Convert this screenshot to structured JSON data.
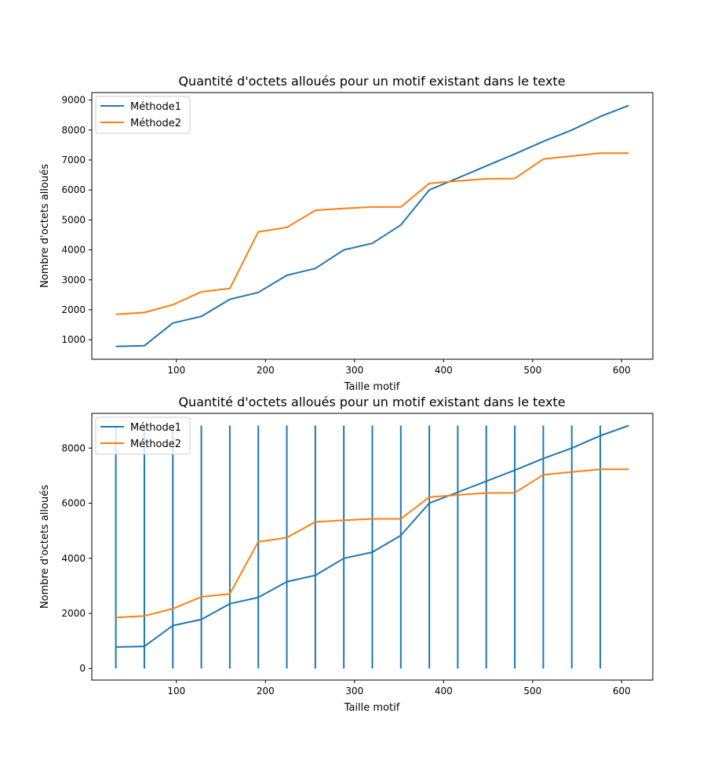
{
  "colors": {
    "methode1": "#1f77b4",
    "methode2": "#ff7f0e"
  },
  "chart_data": [
    {
      "type": "line",
      "title": "Quantité d'octets alloués pour un motif existant dans le texte",
      "xlabel": "Taille motif",
      "ylabel": "Nombre d'octets alloués",
      "xlim": [
        5,
        635
      ],
      "ylim": [
        350,
        9250
      ],
      "xticks": [
        100,
        200,
        300,
        400,
        500,
        600
      ],
      "yticks": [
        1000,
        2000,
        3000,
        4000,
        5000,
        6000,
        7000,
        8000,
        9000
      ],
      "x": [
        32,
        64,
        96,
        128,
        160,
        192,
        224,
        256,
        288,
        320,
        352,
        384,
        416,
        448,
        480,
        512,
        544,
        576,
        608
      ],
      "series": [
        {
          "name": "Méthode1",
          "color": "#1f77b4",
          "values": [
            780,
            800,
            1560,
            1780,
            2350,
            2580,
            3150,
            3380,
            4000,
            4220,
            4830,
            6000,
            6400,
            6800,
            7200,
            7620,
            8000,
            8450,
            8820
          ]
        },
        {
          "name": "Méthode2",
          "color": "#ff7f0e",
          "values": [
            1850,
            1910,
            2170,
            2600,
            2710,
            4600,
            4750,
            5320,
            5380,
            5430,
            5430,
            6220,
            6300,
            6370,
            6380,
            7030,
            7130,
            7230,
            7230
          ]
        }
      ],
      "legend": "top-left",
      "grid": false
    },
    {
      "type": "line",
      "title": "Quantité d'octets alloués pour un motif existant dans le texte",
      "xlabel": "Taille motif",
      "ylabel": "Nombre d'octets alloués",
      "xlim": [
        5,
        635
      ],
      "ylim": [
        -420,
        9260
      ],
      "xticks": [
        100,
        200,
        300,
        400,
        500,
        600
      ],
      "yticks": [
        0,
        2000,
        4000,
        6000,
        8000
      ],
      "x": [
        32,
        64,
        96,
        128,
        160,
        192,
        224,
        256,
        288,
        320,
        352,
        384,
        416,
        448,
        480,
        512,
        544,
        576,
        608
      ],
      "series": [
        {
          "name": "Méthode1",
          "color": "#1f77b4",
          "values": [
            780,
            800,
            1560,
            1780,
            2350,
            2580,
            3150,
            3380,
            4000,
            4220,
            4830,
            6000,
            6400,
            6800,
            7200,
            7620,
            8000,
            8450,
            8820
          ]
        },
        {
          "name": "Méthode2",
          "color": "#ff7f0e",
          "values": [
            1850,
            1910,
            2170,
            2600,
            2710,
            4600,
            4750,
            5320,
            5380,
            5430,
            5430,
            6220,
            6300,
            6370,
            6380,
            7030,
            7130,
            7230,
            7230
          ]
        }
      ],
      "vlines": {
        "x": [
          32,
          64,
          96,
          128,
          160,
          192,
          224,
          256,
          288,
          320,
          352,
          384,
          416,
          448,
          480,
          512,
          544,
          576
        ],
        "ymin": 0,
        "ymax": 8820,
        "color": "#1f77b4"
      },
      "legend": "top-left",
      "grid": false
    }
  ]
}
